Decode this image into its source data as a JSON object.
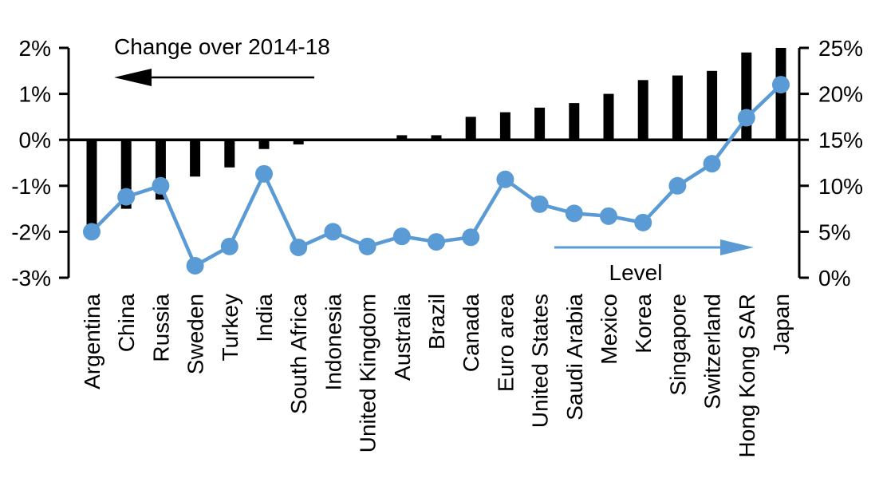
{
  "chart_data": {
    "type": "combo-bar-line",
    "title": "Change over 2014-18",
    "line_label": "Level",
    "categories": [
      "Argentina",
      "China",
      "Russia",
      "Sweden",
      "Turkey",
      "India",
      "South Africa",
      "Indonesia",
      "United Kingdom",
      "Australia",
      "Brazil",
      "Canada",
      "Euro area",
      "United States",
      "Saudi Arabia",
      "Mexico",
      "Korea",
      "Singapore",
      "Switzerland",
      "Hong Kong SAR",
      "Japan"
    ],
    "series": [
      {
        "name": "Change over 2014-18",
        "type": "bar",
        "axis": "left",
        "color": "#000000",
        "values": [
          -1.9,
          -1.5,
          -1.3,
          -0.8,
          -0.6,
          -0.2,
          -0.1,
          0.0,
          0.0,
          0.1,
          0.1,
          0.5,
          0.6,
          0.7,
          0.8,
          1.0,
          1.3,
          1.4,
          1.5,
          1.9,
          2.0
        ]
      },
      {
        "name": "Level",
        "type": "line",
        "axis": "right",
        "color": "#5B9BD5",
        "values": [
          5.0,
          8.8,
          10.0,
          1.3,
          3.4,
          11.3,
          3.3,
          5.0,
          3.4,
          4.5,
          3.9,
          4.4,
          10.7,
          8.0,
          7.0,
          6.7,
          6.0,
          10.0,
          12.4,
          17.4,
          21.0
        ]
      }
    ],
    "left_axis": {
      "min": -3,
      "max": 2,
      "tick_step": 1,
      "unit": "%",
      "tick_labels": [
        "2%",
        "1%",
        "0%",
        "-1%",
        "-2%",
        "-3%"
      ]
    },
    "right_axis": {
      "min": 0,
      "max": 25,
      "tick_step": 5,
      "unit": "%",
      "tick_labels": [
        "25%",
        "20%",
        "15%",
        "10%",
        "5%",
        "0%"
      ]
    },
    "grid": false,
    "annotations": [
      {
        "text": "Change over 2014-18",
        "arrow_direction": "left",
        "color": "#000000",
        "position": "top-left"
      },
      {
        "text": "Level",
        "arrow_direction": "right",
        "color": "#5B9BD5",
        "position": "bottom-right"
      }
    ]
  }
}
